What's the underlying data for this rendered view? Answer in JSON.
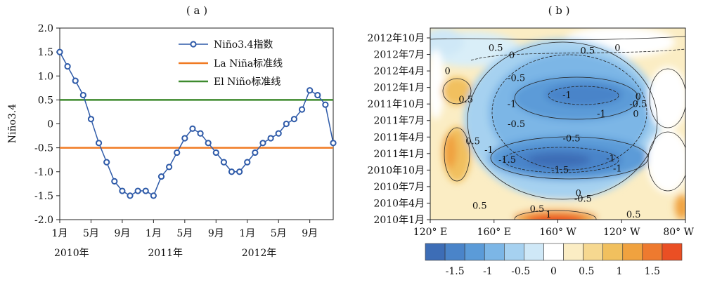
{
  "chart_data": [
    {
      "panel_label": "( a )",
      "type": "line",
      "ylabel": "Niño3.4",
      "ylim": [
        -2.0,
        2.0
      ],
      "yticks": [
        "2.0",
        "1.5",
        "1.0",
        "0.5",
        "0",
        "-0.5",
        "-1.0",
        "-1.5",
        "-2.0"
      ],
      "ytick_values": [
        2.0,
        1.5,
        1.0,
        0.5,
        0,
        -0.5,
        -1.0,
        -1.5,
        -2.0
      ],
      "xticks": [
        {
          "month": 1,
          "label": "1月"
        },
        {
          "month": 5,
          "label": "5月"
        },
        {
          "month": 9,
          "label": "9月"
        },
        {
          "month": 13,
          "label": "1月"
        },
        {
          "month": 17,
          "label": "5月"
        },
        {
          "month": 21,
          "label": "9月"
        },
        {
          "month": 25,
          "label": "1月"
        },
        {
          "month": 29,
          "label": "5月"
        },
        {
          "month": 33,
          "label": "9月"
        }
      ],
      "year_labels": [
        {
          "month": 1,
          "label": "2010年"
        },
        {
          "month": 13,
          "label": "2011年"
        },
        {
          "month": 25,
          "label": "2012年"
        }
      ],
      "xlim": [
        1,
        36
      ],
      "series": [
        {
          "name": "Niño3.4指数",
          "color": "#2E5AA8",
          "marker": "circle",
          "values": [
            1.5,
            1.2,
            0.9,
            0.6,
            0.1,
            -0.4,
            -0.8,
            -1.2,
            -1.4,
            -1.5,
            -1.4,
            -1.4,
            -1.5,
            -1.1,
            -0.9,
            -0.6,
            -0.3,
            -0.1,
            -0.2,
            -0.4,
            -0.6,
            -0.8,
            -1.0,
            -1.0,
            -0.8,
            -0.6,
            -0.4,
            -0.3,
            -0.2,
            0.0,
            0.1,
            0.3,
            0.7,
            0.6,
            0.4,
            -0.4
          ]
        },
        {
          "name": "La Niña标准线",
          "color": "#F07A22",
          "value": -0.5
        },
        {
          "name": "El Niño标准线",
          "color": "#3E8A2E",
          "value": 0.5
        }
      ],
      "legend_position": "top-right"
    },
    {
      "panel_label": "( b )",
      "type": "heatmap",
      "xticks": [
        "120° E",
        "160° E",
        "160° W",
        "120° W",
        "80° W"
      ],
      "yticks": [
        "2012年10月",
        "2012年7月",
        "2012年4月",
        "2012年1月",
        "2011年10月",
        "2011年7月",
        "2011年4月",
        "2011年1月",
        "2010年10月",
        "2010年7月",
        "2010年4月",
        "2010年1月"
      ],
      "contour_labels": [
        {
          "text": "0.5",
          "x": 0.27,
          "y": 0.11
        },
        {
          "text": "0",
          "x": 0.34,
          "y": 0.16
        },
        {
          "text": "0.5",
          "x": 0.67,
          "y": 0.13
        },
        {
          "text": "0",
          "x": 0.8,
          "y": 0.11
        },
        {
          "text": "0",
          "x": 0.06,
          "y": 0.27
        },
        {
          "text": "-0.5",
          "x": 0.36,
          "y": 0.32
        },
        {
          "text": "-1",
          "x": 0.58,
          "y": 0.44
        },
        {
          "text": "0.5",
          "x": 0.14,
          "y": 0.47
        },
        {
          "text": "-1",
          "x": 0.34,
          "y": 0.5
        },
        {
          "text": "-1",
          "x": 0.73,
          "y": 0.57
        },
        {
          "text": "0",
          "x": 0.89,
          "y": 0.45
        },
        {
          "text": "-0.5",
          "x": 0.89,
          "y": 0.5
        },
        {
          "text": "0",
          "x": 0.88,
          "y": 0.57
        },
        {
          "text": "-0.5",
          "x": 0.36,
          "y": 0.64
        },
        {
          "text": "-0.5",
          "x": 0.6,
          "y": 0.74
        },
        {
          "text": "0.5",
          "x": 0.17,
          "y": 0.76
        },
        {
          "text": "-1",
          "x": 0.24,
          "y": 0.82
        },
        {
          "text": "-1.5",
          "x": 0.32,
          "y": 0.89
        },
        {
          "text": "-1",
          "x": 0.77,
          "y": 0.88
        },
        {
          "text": "-1.5",
          "x": 0.55,
          "y": 0.96
        },
        {
          "text": "-1",
          "x": 0.8,
          "y": 0.95
        },
        {
          "text": "0.5",
          "x": 0.2,
          "y": 1.21
        },
        {
          "text": "0",
          "x": 0.63,
          "y": 1.12
        },
        {
          "text": "-0.5",
          "x": 0.65,
          "y": 1.16
        },
        {
          "text": "0.5",
          "x": 0.45,
          "y": 1.23
        },
        {
          "text": "1",
          "x": 0.5,
          "y": 1.27
        },
        {
          "text": "0.5",
          "x": 0.87,
          "y": 1.27
        }
      ],
      "colorbar": {
        "ticks": [
          "-1.5",
          "-1",
          "-0.5",
          "0",
          "0.5",
          "1",
          "1.5"
        ],
        "tick_values": [
          -1.5,
          -1,
          -0.5,
          0,
          0.5,
          1,
          1.5
        ],
        "colors": [
          "#3D6DB6",
          "#4A84C9",
          "#5B9BD8",
          "#7CB6E6",
          "#A6D1F0",
          "#CFE8F7",
          "#FFFFFF",
          "#FBEDC4",
          "#F6D890",
          "#F1C05E",
          "#F0A23F",
          "#EE7A2F",
          "#EA4F24"
        ]
      }
    }
  ]
}
